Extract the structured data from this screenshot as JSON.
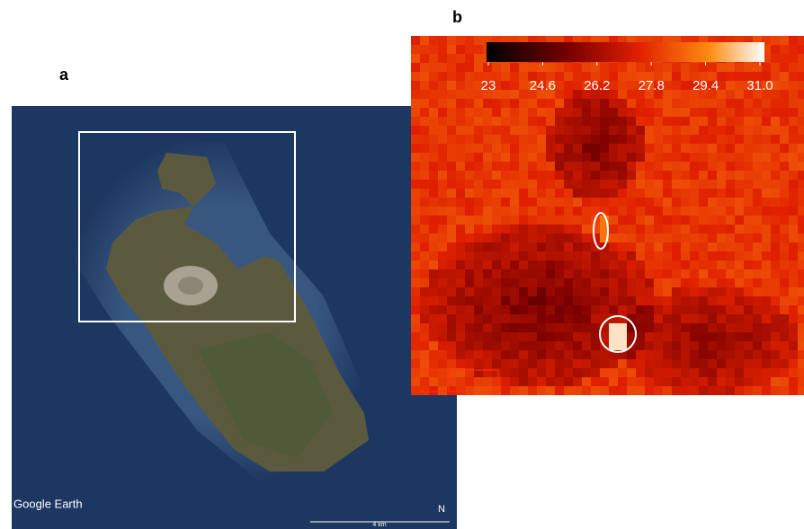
{
  "panels": {
    "a": {
      "label": "a",
      "logo": "Google Earth",
      "scale": "4 km",
      "north": "N"
    },
    "b": {
      "label": "b",
      "colorbar": {
        "lim": [
          23,
          31
        ],
        "ticks": [
          23,
          24.6,
          26.2,
          27.8,
          29.4,
          {
            "value": 31,
            "label": "31.0"
          }
        ]
      }
    }
  }
}
